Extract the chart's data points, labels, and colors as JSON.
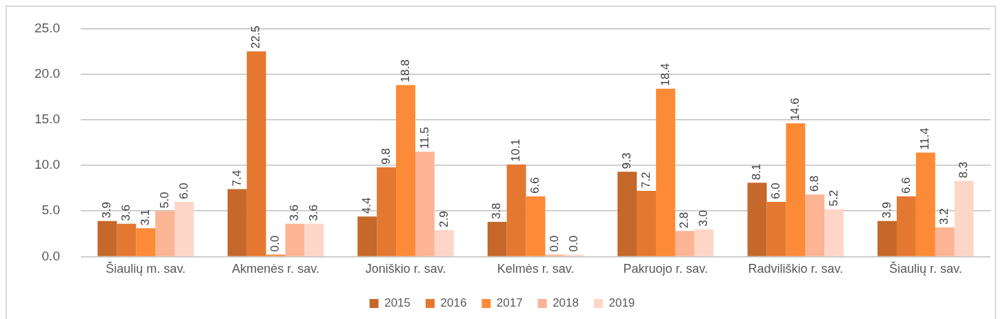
{
  "chart_data": {
    "type": "bar",
    "categories": [
      "Šiaulių m. sav.",
      "Akmenės r. sav.",
      "Joniškio r. sav.",
      "Kelmės r. sav.",
      "Pakruojo r. sav.",
      "Radviliškio r. sav.",
      "Šiaulių r. sav."
    ],
    "series": [
      {
        "name": "2015",
        "color": "#c5682a",
        "values": [
          3.9,
          7.4,
          4.4,
          3.8,
          9.3,
          8.1,
          3.9
        ],
        "value_labels": [
          "3.9",
          "7.4",
          "4.4",
          "3.8",
          "9.3",
          "8.1",
          "3.9"
        ]
      },
      {
        "name": "2016",
        "color": "#e47830",
        "values": [
          3.6,
          22.5,
          9.8,
          10.1,
          7.2,
          6.0,
          6.6
        ],
        "value_labels": [
          "3.6",
          "22.5",
          "9.8",
          "10.1",
          "7.2",
          "6.0",
          "6.6"
        ]
      },
      {
        "name": "2017",
        "color": "#fd8a36",
        "values": [
          3.1,
          0.0,
          18.8,
          6.6,
          18.4,
          14.6,
          11.4
        ],
        "value_labels": [
          "3.1",
          "0.0",
          "18.8",
          "6.6",
          "18.4",
          "14.6",
          "11.4"
        ]
      },
      {
        "name": "2018",
        "color": "#fcb494",
        "values": [
          5.0,
          3.6,
          11.5,
          0.0,
          2.8,
          6.8,
          3.2
        ],
        "value_labels": [
          "5.0",
          "3.6",
          "11.5",
          "0.0",
          "2.8",
          "6.8",
          "3.2"
        ]
      },
      {
        "name": "2019",
        "color": "#fed6c8",
        "values": [
          6.0,
          3.6,
          2.9,
          0.0,
          3.0,
          5.2,
          8.3
        ],
        "value_labels": [
          "6.0",
          "3.6",
          "2.9",
          "0.0",
          "3.0",
          "5.2",
          "8.3"
        ]
      }
    ],
    "ylim": [
      0,
      25
    ],
    "yticks": [
      {
        "value": 0,
        "label": "0.0"
      },
      {
        "value": 5,
        "label": "5.0"
      },
      {
        "value": 10,
        "label": "10.0"
      },
      {
        "value": 15,
        "label": "15.0"
      },
      {
        "value": 20,
        "label": "20.0"
      },
      {
        "value": 25,
        "label": "25.0"
      }
    ],
    "grid": "y",
    "legend": "bottom"
  }
}
